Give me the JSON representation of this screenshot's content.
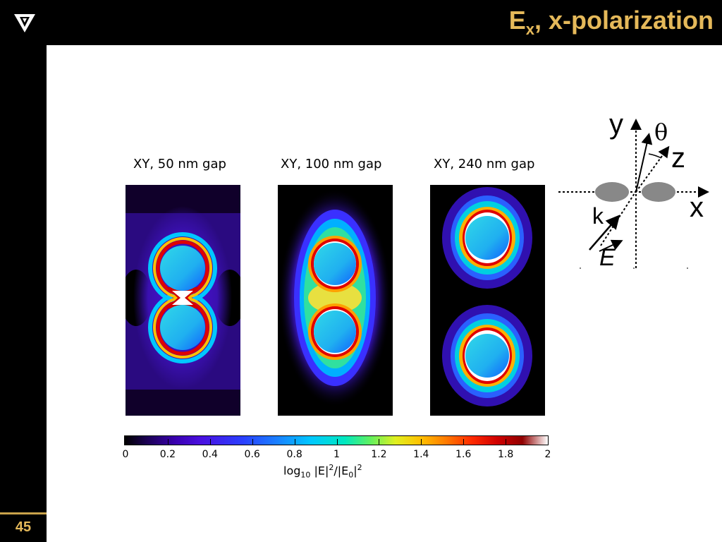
{
  "slide": {
    "title_main": "E",
    "title_sub": "x",
    "title_rest": ", x-polarization",
    "page_number": "45"
  },
  "panels": [
    {
      "label": "XY, 50 nm gap"
    },
    {
      "label": "XY, 100 nm gap"
    },
    {
      "label": "XY, 240 nm gap"
    }
  ],
  "colorbar": {
    "ticks": [
      "0",
      "0.2",
      "0.4",
      "0.6",
      "0.8",
      "1",
      "1.2",
      "1.4",
      "1.6",
      "1.8",
      "2"
    ],
    "label_log": "log",
    "label_log_sub": "10",
    "label_mid1": " |E|",
    "label_sup1": "2",
    "label_mid2": "/|E",
    "label_sub2": "0",
    "label_mid3": "|",
    "label_sup2": "2"
  },
  "diagram": {
    "y": "y",
    "theta": "θ",
    "z": "z",
    "x": "x",
    "k": "k",
    "e": "E"
  },
  "colors": {
    "accent": "#e5b95a",
    "particle": "#888888"
  }
}
